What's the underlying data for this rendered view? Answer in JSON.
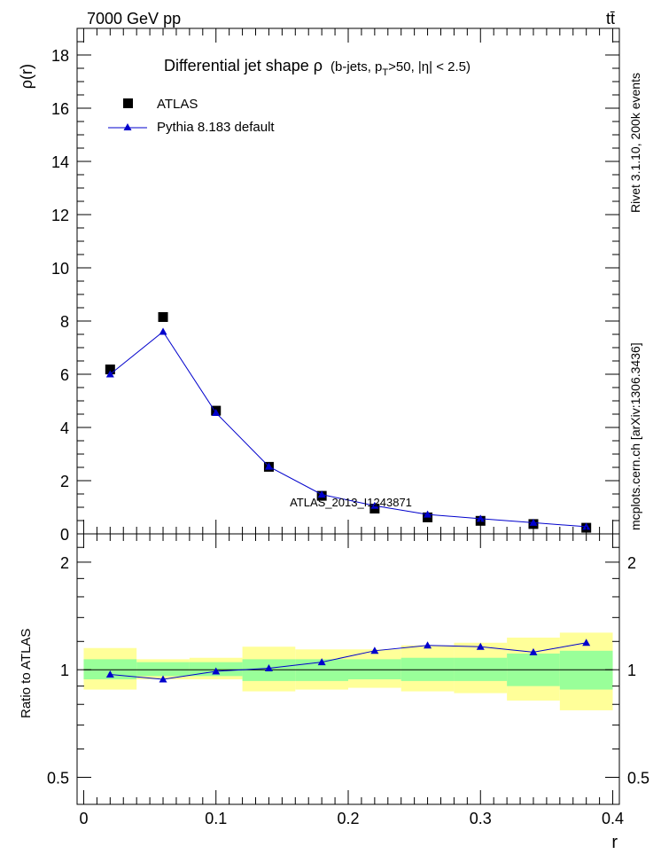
{
  "header": {
    "energy_label": "7000 GeV pp",
    "process_label": "tt̄"
  },
  "side_labels": {
    "rivet": "Rivet 3.1.10,  200k events",
    "mcplots": "mcplots.cern.ch [arXiv:1306.3436]"
  },
  "watermark": "ATLAS_2013_I1243871",
  "chart_data": [
    {
      "type": "scatter",
      "title_main": "Differential jet shape  ρ",
      "title_detail": "(b-jets, pT>50, |η| < 2.5)",
      "ylabel": "ρ(r)",
      "ylim": [
        0,
        19
      ],
      "xlim": [
        -0.005,
        0.405
      ],
      "yticks": [
        0,
        2,
        4,
        6,
        8,
        10,
        12,
        14,
        16,
        18
      ],
      "legend": [
        "ATLAS",
        "Pythia 8.183 default"
      ],
      "legend_position": "top-left",
      "series": [
        {
          "name": "ATLAS",
          "marker": "square",
          "color": "#000000",
          "x": [
            0.02,
            0.06,
            0.1,
            0.14,
            0.18,
            0.22,
            0.26,
            0.3,
            0.34,
            0.38
          ],
          "y": [
            6.18,
            8.15,
            4.63,
            2.52,
            1.43,
            0.95,
            0.62,
            0.49,
            0.37,
            0.23
          ]
        },
        {
          "name": "Pythia 8.183 default",
          "marker": "triangle",
          "color": "#0000cc",
          "x": [
            0.02,
            0.06,
            0.1,
            0.14,
            0.18,
            0.22,
            0.26,
            0.3,
            0.34,
            0.38
          ],
          "y": [
            6.0,
            7.6,
            4.55,
            2.53,
            1.48,
            1.06,
            0.73,
            0.57,
            0.42,
            0.27
          ]
        }
      ]
    },
    {
      "type": "scatter",
      "ylabel": "Ratio to ATLAS",
      "xlabel": "r",
      "scale": "log",
      "ylim": [
        0.42,
        2.4
      ],
      "xlim": [
        -0.005,
        0.405
      ],
      "yticks": [
        0.5,
        1,
        2
      ],
      "xticks": [
        0,
        0.1,
        0.2,
        0.3,
        0.4
      ],
      "bands": {
        "bins": [
          [
            0.0,
            0.04
          ],
          [
            0.04,
            0.08
          ],
          [
            0.08,
            0.12
          ],
          [
            0.12,
            0.16
          ],
          [
            0.16,
            0.2
          ],
          [
            0.2,
            0.24
          ],
          [
            0.24,
            0.28
          ],
          [
            0.28,
            0.32
          ],
          [
            0.32,
            0.36
          ],
          [
            0.36,
            0.4
          ]
        ],
        "stat_color": "#99ff99",
        "total_color": "#ffff99",
        "stat_low": [
          0.94,
          0.96,
          0.96,
          0.93,
          0.93,
          0.94,
          0.93,
          0.93,
          0.9,
          0.88
        ],
        "stat_high": [
          1.07,
          1.05,
          1.05,
          1.07,
          1.07,
          1.07,
          1.08,
          1.08,
          1.11,
          1.13
        ],
        "total_low": [
          0.88,
          0.94,
          0.94,
          0.87,
          0.88,
          0.89,
          0.87,
          0.86,
          0.82,
          0.77
        ],
        "total_high": [
          1.15,
          1.07,
          1.08,
          1.16,
          1.14,
          1.14,
          1.17,
          1.19,
          1.23,
          1.27
        ]
      },
      "series": [
        {
          "name": "Pythia 8.183 default",
          "marker": "triangle",
          "color": "#0000cc",
          "x": [
            0.02,
            0.06,
            0.1,
            0.14,
            0.18,
            0.22,
            0.26,
            0.3,
            0.34,
            0.38
          ],
          "y": [
            0.97,
            0.94,
            0.99,
            1.01,
            1.05,
            1.13,
            1.17,
            1.16,
            1.12,
            1.19
          ]
        }
      ]
    }
  ]
}
